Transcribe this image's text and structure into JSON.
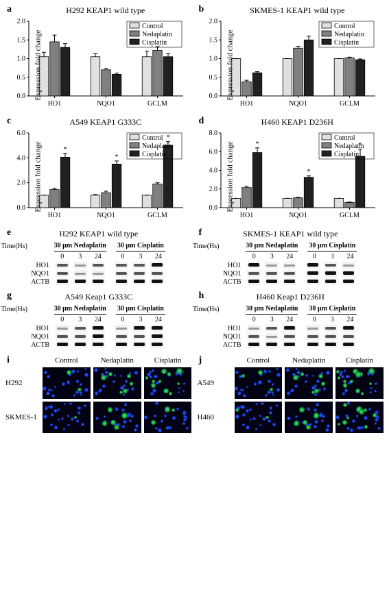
{
  "figure_background": "#ffffff",
  "panels_barcharts": [
    {
      "id": "a",
      "title": "H292 KEAP1 wild type",
      "ymax": 2.0,
      "ystep": 0.5,
      "star_indices": [],
      "groups": [
        "HO1",
        "NQO1",
        "GCLM"
      ],
      "series": [
        {
          "name": "Control",
          "color": "#e0e0e0",
          "values": [
            1.05,
            1.05,
            1.05
          ],
          "err": [
            0.12,
            0.08,
            0.15
          ]
        },
        {
          "name": "Nedaplatin",
          "color": "#808080",
          "values": [
            1.45,
            0.7,
            1.22
          ],
          "err": [
            0.18,
            0.04,
            0.1
          ]
        },
        {
          "name": "Cisplatin",
          "color": "#202020",
          "values": [
            1.3,
            0.58,
            1.05
          ],
          "err": [
            0.1,
            0.03,
            0.08
          ]
        }
      ],
      "show_legend": true
    },
    {
      "id": "b",
      "title": "SKMES-1 KEAP1 wild type",
      "ymax": 2.0,
      "ystep": 0.5,
      "star_indices": [],
      "groups": [
        "HO1",
        "NQO1",
        "GCLM"
      ],
      "series": [
        {
          "name": "Control",
          "color": "#e0e0e0",
          "values": [
            1.0,
            1.0,
            1.0
          ],
          "err": [
            0.0,
            0.0,
            0.0
          ]
        },
        {
          "name": "Nedaplatin",
          "color": "#808080",
          "values": [
            0.38,
            1.28,
            1.02
          ],
          "err": [
            0.04,
            0.05,
            0.02
          ]
        },
        {
          "name": "Cisplatin",
          "color": "#202020",
          "values": [
            0.62,
            1.5,
            0.97
          ],
          "err": [
            0.03,
            0.1,
            0.02
          ]
        }
      ],
      "show_legend": true
    },
    {
      "id": "c",
      "title": "A549 KEAP1 G333C",
      "ymax": 6.0,
      "ystep": 2.0,
      "star_indices": [
        [
          0,
          2
        ],
        [
          1,
          2
        ],
        [
          2,
          2
        ]
      ],
      "groups": [
        "HO1",
        "NQO1",
        "GCLM"
      ],
      "series": [
        {
          "name": "Control",
          "color": "#e0e0e0",
          "values": [
            1.0,
            1.0,
            1.0
          ],
          "err": [
            0.0,
            0.05,
            0.0
          ]
        },
        {
          "name": "Nedaplatin",
          "color": "#808080",
          "values": [
            1.45,
            1.2,
            1.9
          ],
          "err": [
            0.1,
            0.12,
            0.1
          ]
        },
        {
          "name": "Cisplatin",
          "color": "#202020",
          "values": [
            4.05,
            3.5,
            5.0
          ],
          "err": [
            0.3,
            0.25,
            0.3
          ]
        }
      ],
      "show_legend": true
    },
    {
      "id": "d",
      "title": "H460 KEAP1 D236H",
      "ymax": 8.0,
      "ystep": 2.0,
      "star_indices": [
        [
          0,
          2
        ],
        [
          1,
          2
        ],
        [
          2,
          2
        ]
      ],
      "groups": [
        "HO1",
        "NQO1",
        "GCLM"
      ],
      "series": [
        {
          "name": "Control",
          "color": "#e0e0e0",
          "values": [
            1.0,
            1.0,
            1.0
          ],
          "err": [
            0.0,
            0.0,
            0.0
          ]
        },
        {
          "name": "Nedaplatin",
          "color": "#808080",
          "values": [
            2.15,
            1.05,
            0.55
          ],
          "err": [
            0.15,
            0.05,
            0.05
          ]
        },
        {
          "name": "Cisplatin",
          "color": "#202020",
          "values": [
            5.9,
            3.25,
            5.5
          ],
          "err": [
            0.5,
            0.15,
            0.75
          ]
        }
      ],
      "show_legend": true
    }
  ],
  "bar_legend": [
    "Control",
    "Nedaplatin",
    "Cisplatin"
  ],
  "ylabel": "Expression fold change",
  "wb_panels": [
    {
      "id": "e",
      "title": "H292 KEAP1 wild type",
      "conds": [
        "30 μm Nedaplatin",
        "30 μm Cisplatin"
      ],
      "times": [
        0,
        3,
        24
      ],
      "rows": [
        {
          "name": "HO1",
          "left": [
            "n",
            "w",
            "n"
          ],
          "right": [
            "n",
            "n",
            "s"
          ]
        },
        {
          "name": "NQO1",
          "left": [
            "n",
            "w",
            "w"
          ],
          "right": [
            "n",
            "n",
            "n"
          ]
        },
        {
          "name": "ACTB",
          "left": [
            "s",
            "s",
            "s"
          ],
          "right": [
            "s",
            "s",
            "s"
          ]
        }
      ]
    },
    {
      "id": "f",
      "title": "SKMES-1 KEAP1 wild type",
      "conds": [
        "30 μm Nedaplatin",
        "30 μm Cisplatin"
      ],
      "times": [
        0,
        3,
        24
      ],
      "rows": [
        {
          "name": "HO1",
          "left": [
            "s",
            "w",
            "w"
          ],
          "right": [
            "s",
            "n",
            "w"
          ]
        },
        {
          "name": "NQO1",
          "left": [
            "n",
            "n",
            "n"
          ],
          "right": [
            "s",
            "s",
            "s"
          ]
        },
        {
          "name": "ACTB",
          "left": [
            "s",
            "s",
            "s"
          ],
          "right": [
            "s",
            "s",
            "s"
          ]
        }
      ]
    },
    {
      "id": "g",
      "title": "A549 Keap1 G333C",
      "conds": [
        "30 μm Nedaplatin",
        "30 μm Cisplatin"
      ],
      "times": [
        0,
        3,
        24
      ],
      "rows": [
        {
          "name": "HO1",
          "left": [
            "w",
            "n",
            "s"
          ],
          "right": [
            "w",
            "s",
            "s"
          ]
        },
        {
          "name": "NQO1",
          "left": [
            "n",
            "n",
            "s"
          ],
          "right": [
            "n",
            "n",
            "s"
          ]
        },
        {
          "name": "ACTB",
          "left": [
            "s",
            "s",
            "s"
          ],
          "right": [
            "s",
            "s",
            "s"
          ]
        }
      ]
    },
    {
      "id": "h",
      "title": "H460 Keap1 D236H",
      "conds": [
        "30 μm Nedaplatin",
        "30 μm Cisplatin"
      ],
      "times": [
        0,
        3,
        24
      ],
      "rows": [
        {
          "name": "HO1",
          "left": [
            "w",
            "n",
            "s"
          ],
          "right": [
            "w",
            "n",
            "s"
          ]
        },
        {
          "name": "NQO1",
          "left": [
            "n",
            "w",
            "n"
          ],
          "right": [
            "n",
            "n",
            "n"
          ]
        },
        {
          "name": "ACTB",
          "left": [
            "s",
            "s",
            "s"
          ],
          "right": [
            "s",
            "s",
            "s"
          ]
        }
      ]
    }
  ],
  "time_label": "Time(Hs)",
  "micro_panels": [
    {
      "id": "i",
      "cols": [
        "Control",
        "Nedaplatin",
        "Cisplatin"
      ],
      "rows": [
        {
          "name": "H292",
          "green_counts": [
            2,
            6,
            10
          ]
        },
        {
          "name": "SKMES-1",
          "green_counts": [
            1,
            5,
            3
          ]
        }
      ]
    },
    {
      "id": "j",
      "cols": [
        "Control",
        "Nedaplatin",
        "Cisplatin"
      ],
      "rows": [
        {
          "name": "A549",
          "green_counts": [
            3,
            6,
            12
          ]
        },
        {
          "name": "H460",
          "green_counts": [
            2,
            5,
            9
          ]
        }
      ]
    }
  ]
}
